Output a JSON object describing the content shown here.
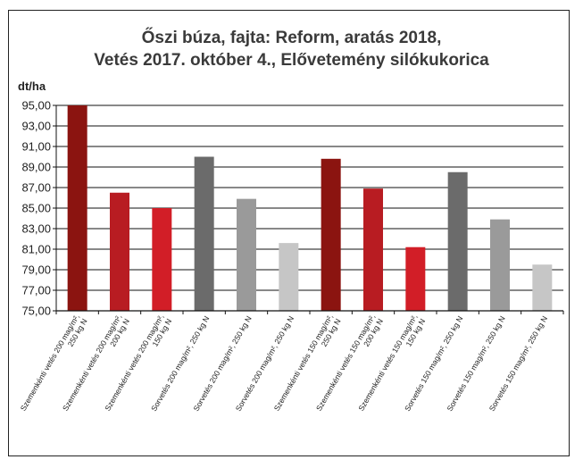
{
  "chart_data": {
    "type": "bar",
    "title_lines": [
      "Őszi búza, fajta: Reform, aratás 2018,",
      "Vetés 2017. október 4., Elővetemény silókukorica"
    ],
    "ylabel": "dt/ha",
    "xlabel": "",
    "ylim": [
      75,
      95
    ],
    "yticks": [
      "75,00",
      "77,00",
      "79,00",
      "81,00",
      "83,00",
      "85,00",
      "87,00",
      "89,00",
      "91,00",
      "93,00",
      "95,00"
    ],
    "grid": true,
    "categories": [
      [
        "Szemenkénti vetés 200 mag/m²,",
        "250 kg N"
      ],
      [
        "Szemenkénti vetés 200 mag/m²,",
        "200 kg N"
      ],
      [
        "Szemenkénti vetés 200 mag/m²,",
        "150 kg N"
      ],
      [
        "Sorvetés 200 mag/m², 250 kg N"
      ],
      [
        "Sorvetés 200 mag/m², 250 kg N"
      ],
      [
        "Sorvetés 200 mag/m², 250 kg N"
      ],
      [
        "Szemenkénti vetés 150 mag/m²,",
        "250 kg N"
      ],
      [
        "Szemenkénti vetés 150 mag/m²,",
        "200 kg N"
      ],
      [
        "Szemenkénti vetés 150 mag/m²,",
        "150 kg N"
      ],
      [
        "Sorvetés 150 mag/m², 250 kg N"
      ],
      [
        "Sorvetés 150 mag/m², 250 kg N"
      ],
      [
        "Sorvetés 150 mag/m², 250 kg N"
      ]
    ],
    "values": [
      95.0,
      86.5,
      85.0,
      90.0,
      85.9,
      81.6,
      89.8,
      86.9,
      81.2,
      88.5,
      83.9,
      79.5
    ],
    "colors": [
      "#8b1410",
      "#b81c22",
      "#d21e27",
      "#6b6b6b",
      "#9a9a9a",
      "#c6c6c6",
      "#8b1410",
      "#b81c22",
      "#d21e27",
      "#6b6b6b",
      "#9a9a9a",
      "#c6c6c6"
    ]
  }
}
